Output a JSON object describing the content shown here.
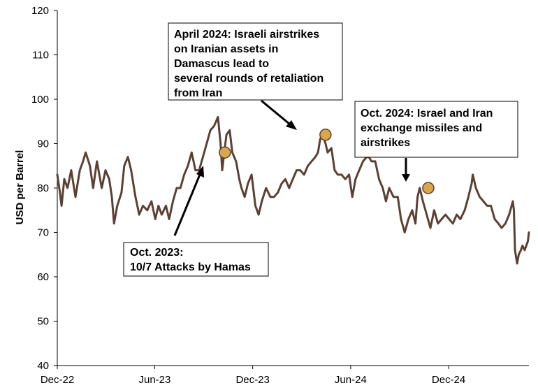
{
  "chart_data": {
    "type": "line",
    "ylabel": "USD per Barrel",
    "ylim": [
      40,
      120
    ],
    "y_ticks": [
      "40",
      "50",
      "60",
      "70",
      "80",
      "90",
      "100",
      "110",
      "120"
    ],
    "x_tick_labels": [
      "Dec-22",
      "Jun-23",
      "Dec-23",
      "Jun-24",
      "Dec-24"
    ],
    "x_tick_dates": [
      "2022-12-01",
      "2023-06-01",
      "2023-12-01",
      "2024-06-01",
      "2024-12-01"
    ],
    "x_range": [
      "2022-12-01",
      "2025-04-30"
    ],
    "grid": false,
    "series": [
      {
        "color": "#5c4033",
        "points": [
          [
            "2022-12-01",
            83
          ],
          [
            "2022-12-06",
            79
          ],
          [
            "2022-12-09",
            76
          ],
          [
            "2022-12-14",
            82
          ],
          [
            "2022-12-20",
            80
          ],
          [
            "2022-12-27",
            84
          ],
          [
            "2023-01-04",
            78
          ],
          [
            "2023-01-12",
            84
          ],
          [
            "2023-01-18",
            86
          ],
          [
            "2023-01-23",
            88
          ],
          [
            "2023-01-31",
            85
          ],
          [
            "2023-02-06",
            80
          ],
          [
            "2023-02-13",
            86
          ],
          [
            "2023-02-22",
            80
          ],
          [
            "2023-03-01",
            84
          ],
          [
            "2023-03-08",
            82
          ],
          [
            "2023-03-13",
            78
          ],
          [
            "2023-03-17",
            72
          ],
          [
            "2023-03-23",
            76
          ],
          [
            "2023-03-31",
            79
          ],
          [
            "2023-04-05",
            85
          ],
          [
            "2023-04-12",
            87
          ],
          [
            "2023-04-18",
            84
          ],
          [
            "2023-04-26",
            78
          ],
          [
            "2023-05-03",
            74
          ],
          [
            "2023-05-10",
            76
          ],
          [
            "2023-05-18",
            75
          ],
          [
            "2023-05-26",
            77
          ],
          [
            "2023-06-02",
            73
          ],
          [
            "2023-06-08",
            76
          ],
          [
            "2023-06-14",
            74
          ],
          [
            "2023-06-22",
            76
          ],
          [
            "2023-06-28",
            73
          ],
          [
            "2023-07-05",
            77
          ],
          [
            "2023-07-12",
            80
          ],
          [
            "2023-07-19",
            80
          ],
          [
            "2023-07-26",
            83
          ],
          [
            "2023-08-02",
            85
          ],
          [
            "2023-08-09",
            88
          ],
          [
            "2023-08-16",
            84
          ],
          [
            "2023-08-23",
            84
          ],
          [
            "2023-08-30",
            87
          ],
          [
            "2023-09-06",
            90
          ],
          [
            "2023-09-13",
            93
          ],
          [
            "2023-09-20",
            94
          ],
          [
            "2023-09-27",
            96
          ],
          [
            "2023-10-02",
            90
          ],
          [
            "2023-10-05",
            84
          ],
          [
            "2023-10-09",
            88
          ],
          [
            "2023-10-13",
            92
          ],
          [
            "2023-10-19",
            93
          ],
          [
            "2023-10-24",
            88
          ],
          [
            "2023-10-31",
            86
          ],
          [
            "2023-11-06",
            82
          ],
          [
            "2023-11-10",
            80
          ],
          [
            "2023-11-16",
            78
          ],
          [
            "2023-11-22",
            81
          ],
          [
            "2023-11-29",
            83
          ],
          [
            "2023-12-06",
            76
          ],
          [
            "2023-12-12",
            74
          ],
          [
            "2023-12-18",
            77
          ],
          [
            "2023-12-26",
            80
          ],
          [
            "2024-01-03",
            78
          ],
          [
            "2024-01-10",
            78
          ],
          [
            "2024-01-17",
            79
          ],
          [
            "2024-01-24",
            81
          ],
          [
            "2024-01-31",
            82
          ],
          [
            "2024-02-07",
            80
          ],
          [
            "2024-02-14",
            82
          ],
          [
            "2024-02-21",
            84
          ],
          [
            "2024-02-28",
            84
          ],
          [
            "2024-03-06",
            83
          ],
          [
            "2024-03-13",
            85
          ],
          [
            "2024-03-20",
            86
          ],
          [
            "2024-03-27",
            87
          ],
          [
            "2024-04-01",
            88
          ],
          [
            "2024-04-05",
            91
          ],
          [
            "2024-04-10",
            92
          ],
          [
            "2024-04-15",
            90
          ],
          [
            "2024-04-19",
            88
          ],
          [
            "2024-04-26",
            89
          ],
          [
            "2024-05-02",
            84
          ],
          [
            "2024-05-08",
            83
          ],
          [
            "2024-05-15",
            83
          ],
          [
            "2024-05-22",
            82
          ],
          [
            "2024-05-29",
            83
          ],
          [
            "2024-06-04",
            78
          ],
          [
            "2024-06-10",
            82
          ],
          [
            "2024-06-17",
            84
          ],
          [
            "2024-06-24",
            86
          ],
          [
            "2024-07-01",
            87
          ],
          [
            "2024-07-05",
            87
          ],
          [
            "2024-07-10",
            86
          ],
          [
            "2024-07-17",
            86
          ],
          [
            "2024-07-24",
            82
          ],
          [
            "2024-07-31",
            80
          ],
          [
            "2024-08-06",
            77
          ],
          [
            "2024-08-12",
            80
          ],
          [
            "2024-08-20",
            78
          ],
          [
            "2024-08-28",
            78
          ],
          [
            "2024-09-03",
            73
          ],
          [
            "2024-09-10",
            70
          ],
          [
            "2024-09-17",
            73
          ],
          [
            "2024-09-24",
            75
          ],
          [
            "2024-09-30",
            72
          ],
          [
            "2024-10-04",
            78
          ],
          [
            "2024-10-08",
            80
          ],
          [
            "2024-10-14",
            77
          ],
          [
            "2024-10-21",
            74
          ],
          [
            "2024-10-28",
            71
          ],
          [
            "2024-11-04",
            75
          ],
          [
            "2024-11-11",
            72
          ],
          [
            "2024-11-18",
            73
          ],
          [
            "2024-11-25",
            74
          ],
          [
            "2024-12-02",
            73
          ],
          [
            "2024-12-09",
            72
          ],
          [
            "2024-12-16",
            74
          ],
          [
            "2024-12-23",
            73
          ],
          [
            "2024-12-31",
            75
          ],
          [
            "2025-01-07",
            78
          ],
          [
            "2025-01-13",
            81
          ],
          [
            "2025-01-15",
            83
          ],
          [
            "2025-01-21",
            80
          ],
          [
            "2025-01-28",
            78
          ],
          [
            "2025-02-04",
            77
          ],
          [
            "2025-02-11",
            76
          ],
          [
            "2025-02-18",
            76
          ],
          [
            "2025-02-25",
            73
          ],
          [
            "2025-03-04",
            72
          ],
          [
            "2025-03-10",
            71
          ],
          [
            "2025-03-17",
            72
          ],
          [
            "2025-03-24",
            74
          ],
          [
            "2025-03-31",
            77
          ],
          [
            "2025-04-02",
            75
          ],
          [
            "2025-04-04",
            66
          ],
          [
            "2025-04-08",
            63
          ],
          [
            "2025-04-11",
            65
          ],
          [
            "2025-04-15",
            66
          ],
          [
            "2025-04-18",
            67
          ],
          [
            "2025-04-22",
            66
          ],
          [
            "2025-04-25",
            67
          ],
          [
            "2025-04-28",
            68
          ],
          [
            "2025-04-30",
            70
          ]
        ]
      }
    ],
    "markers": [
      {
        "date": "2023-10-10",
        "value": 88,
        "color": "#d9a74a"
      },
      {
        "date": "2024-04-15",
        "value": 92,
        "color": "#d9a74a"
      },
      {
        "date": "2024-10-24",
        "value": 80,
        "color": "#d9a74a"
      }
    ],
    "annotations": [
      {
        "lines": [
          "April 2024: Israeli airstrikes",
          "on Iranian assets in",
          "Damascus lead to",
          "several rounds of retaliation",
          "from Iran"
        ]
      },
      {
        "lines": [
          "Oct. 2024: Israel and Iran",
          "exchange missiles and",
          "airstrikes"
        ]
      },
      {
        "lines": [
          "Oct. 2023:",
          "10/7 Attacks by Hamas"
        ]
      }
    ]
  }
}
